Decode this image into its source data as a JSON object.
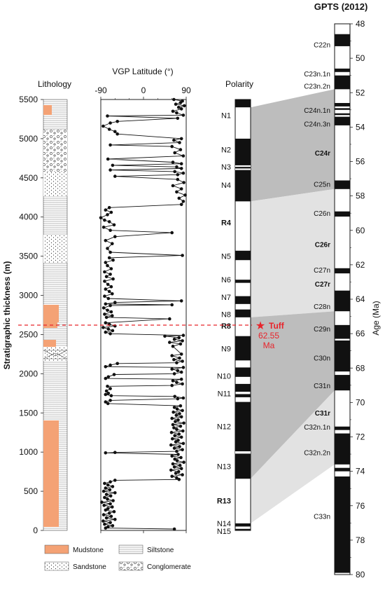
{
  "figure": {
    "lithology_title": "Lithology",
    "vgp_title": "VGP Latitude (°)",
    "polarity_title": "Polarity",
    "gpts_title": "GPTS (2012)",
    "y_label": "Stratigraphic thickness (m)",
    "age_label": "Age (Ma)",
    "tuff_label": "Tuff",
    "tuff_age_value": "62.55",
    "tuff_age_unit": "Ma",
    "tuff_color": "#e8242b",
    "mudstone_color": "#f4a275",
    "legend": [
      {
        "key": "mudstone",
        "label": "Mudstone"
      },
      {
        "key": "siltstone",
        "label": "Siltstone"
      },
      {
        "key": "sandstone",
        "label": "Sandstone"
      },
      {
        "key": "conglomerate",
        "label": "Conglomerate"
      }
    ]
  },
  "chart_data": [
    {
      "type": "line",
      "name": "vgp",
      "xlabel": "VGP Latitude (°)",
      "ylabel": "Stratigraphic thickness (m)",
      "xlim": [
        -90,
        90
      ],
      "ylim": [
        0,
        5500
      ],
      "x_ticks": [
        -90,
        0,
        90
      ],
      "y_ticks": [
        0,
        500,
        1000,
        1500,
        2000,
        2500,
        3000,
        3500,
        4000,
        4500,
        5000,
        5500
      ],
      "points": [
        [
          65,
          18
        ],
        [
          -80,
          30
        ],
        [
          -75,
          45
        ],
        [
          -65,
          60
        ],
        [
          -82,
          80
        ],
        [
          -70,
          100
        ],
        [
          -85,
          120
        ],
        [
          -60,
          140
        ],
        [
          -78,
          160
        ],
        [
          -68,
          180
        ],
        [
          -84,
          200
        ],
        [
          -72,
          220
        ],
        [
          -62,
          240
        ],
        [
          -80,
          260
        ],
        [
          -75,
          280
        ],
        [
          -66,
          300
        ],
        [
          -83,
          320
        ],
        [
          -70,
          340
        ],
        [
          -88,
          360
        ],
        [
          -64,
          380
        ],
        [
          -76,
          400
        ],
        [
          -82,
          420
        ],
        [
          -69,
          440
        ],
        [
          -78,
          460
        ],
        [
          -60,
          480
        ],
        [
          -84,
          500
        ],
        [
          -71,
          520
        ],
        [
          -80,
          540
        ],
        [
          -65,
          560
        ],
        [
          -75,
          580
        ],
        [
          -82,
          600
        ],
        [
          -70,
          620
        ],
        [
          -60,
          640
        ],
        [
          75,
          650
        ],
        [
          70,
          670
        ],
        [
          60,
          690
        ],
        [
          82,
          710
        ],
        [
          68,
          730
        ],
        [
          74,
          750
        ],
        [
          58,
          770
        ],
        [
          80,
          790
        ],
        [
          65,
          810
        ],
        [
          77,
          830
        ],
        [
          62,
          850
        ],
        [
          85,
          870
        ],
        [
          71,
          890
        ],
        [
          66,
          910
        ],
        [
          79,
          930
        ],
        [
          60,
          950
        ],
        [
          73,
          970
        ],
        [
          -80,
          990
        ],
        [
          -60,
          995
        ],
        [
          70,
          1010
        ],
        [
          82,
          1030
        ],
        [
          65,
          1050
        ],
        [
          76,
          1070
        ],
        [
          58,
          1090
        ],
        [
          84,
          1110
        ],
        [
          68,
          1130
        ],
        [
          73,
          1150
        ],
        [
          61,
          1170
        ],
        [
          80,
          1190
        ],
        [
          66,
          1210
        ],
        [
          75,
          1230
        ],
        [
          59,
          1250
        ],
        [
          83,
          1270
        ],
        [
          70,
          1290
        ],
        [
          64,
          1310
        ],
        [
          78,
          1330
        ],
        [
          62,
          1350
        ],
        [
          85,
          1370
        ],
        [
          67,
          1390
        ],
        [
          73,
          1410
        ],
        [
          60,
          1430
        ],
        [
          80,
          1450
        ],
        [
          69,
          1470
        ],
        [
          76,
          1490
        ],
        [
          63,
          1510
        ],
        [
          82,
          1530
        ],
        [
          71,
          1550
        ],
        [
          65,
          1570
        ],
        [
          78,
          1590
        ],
        [
          -75,
          1620
        ],
        [
          -80,
          1640
        ],
        [
          -70,
          1660
        ],
        [
          72,
          1680
        ],
        [
          84,
          1690
        ],
        [
          66,
          1710
        ],
        [
          -68,
          1720
        ],
        [
          -80,
          1735
        ],
        [
          -74,
          1750
        ],
        [
          -78,
          1780
        ],
        [
          -70,
          1810
        ],
        [
          -76,
          1840
        ],
        [
          60,
          1850
        ],
        [
          82,
          1870
        ],
        [
          70,
          1890
        ],
        [
          62,
          1910
        ],
        [
          80,
          1930
        ],
        [
          -80,
          1940
        ],
        [
          -74,
          1960
        ],
        [
          -62,
          1990
        ],
        [
          65,
          2000
        ],
        [
          80,
          2020
        ],
        [
          72,
          2040
        ],
        [
          60,
          2060
        ],
        [
          84,
          2080
        ],
        [
          -80,
          2090
        ],
        [
          -70,
          2110
        ],
        [
          -55,
          2130
        ],
        [
          70,
          2140
        ],
        [
          82,
          2160
        ],
        [
          64,
          2180
        ],
        [
          76,
          2200
        ],
        [
          60,
          2230
        ],
        [
          80,
          2250
        ],
        [
          62,
          2350
        ],
        [
          78,
          2380
        ],
        [
          55,
          2400
        ],
        [
          82,
          2420
        ],
        [
          65,
          2440
        ],
        [
          75,
          2460
        ],
        [
          45,
          2480
        ],
        [
          84,
          2490
        ],
        [
          -70,
          2510
        ],
        [
          -80,
          2530
        ],
        [
          -65,
          2550
        ],
        [
          -74,
          2570
        ],
        [
          -85,
          2590
        ],
        [
          -60,
          2610
        ],
        [
          -72,
          2630
        ],
        [
          -80,
          2650
        ],
        [
          55,
          2700
        ],
        [
          -78,
          2720
        ],
        [
          -66,
          2740
        ],
        [
          -82,
          2760
        ],
        [
          -68,
          2790
        ],
        [
          -76,
          2810
        ],
        [
          -84,
          2840
        ],
        [
          -70,
          2870
        ],
        [
          60,
          2880
        ],
        [
          -80,
          2890
        ],
        [
          -60,
          2910
        ],
        [
          80,
          2930
        ],
        [
          -74,
          2960
        ],
        [
          -82,
          2990
        ],
        [
          -66,
          3020
        ],
        [
          -72,
          3050
        ],
        [
          -80,
          3080
        ],
        [
          -68,
          3110
        ],
        [
          -75,
          3140
        ],
        [
          -82,
          3180
        ],
        [
          -64,
          3210
        ],
        [
          -78,
          3240
        ],
        [
          -70,
          3270
        ],
        [
          -82,
          3300
        ],
        [
          -68,
          3340
        ],
        [
          -76,
          3380
        ],
        [
          -80,
          3420
        ],
        [
          -64,
          3450
        ],
        [
          -72,
          3480
        ],
        [
          82,
          3510
        ],
        [
          -70,
          3550
        ],
        [
          -76,
          3600
        ],
        [
          -66,
          3660
        ],
        [
          -80,
          3700
        ],
        [
          -60,
          3750
        ],
        [
          60,
          3800
        ],
        [
          -70,
          3830
        ],
        [
          -84,
          3870
        ],
        [
          -62,
          3900
        ],
        [
          -72,
          3940
        ],
        [
          -82,
          3960
        ],
        [
          -90,
          3990
        ],
        [
          -76,
          4030
        ],
        [
          -68,
          4060
        ],
        [
          -80,
          4090
        ],
        [
          -72,
          4120
        ],
        [
          80,
          4160
        ],
        [
          84,
          4200
        ],
        [
          75,
          4240
        ],
        [
          88,
          4280
        ],
        [
          70,
          4320
        ],
        [
          80,
          4360
        ],
        [
          62,
          4400
        ],
        [
          85,
          4440
        ],
        [
          72,
          4480
        ],
        [
          -60,
          4520
        ],
        [
          72,
          4540
        ],
        [
          84,
          4560
        ],
        [
          66,
          4580
        ],
        [
          -70,
          4600
        ],
        [
          80,
          4620
        ],
        [
          70,
          4640
        ],
        [
          -65,
          4660
        ],
        [
          80,
          4680
        ],
        [
          62,
          4700
        ],
        [
          -75,
          4740
        ],
        [
          84,
          4780
        ],
        [
          66,
          4820
        ],
        [
          78,
          4860
        ],
        [
          60,
          4900
        ],
        [
          -70,
          4920
        ],
        [
          76,
          4950
        ],
        [
          64,
          4980
        ],
        [
          80,
          5000
        ],
        [
          -55,
          5060
        ],
        [
          -60,
          5090
        ],
        [
          -72,
          5120
        ],
        [
          -85,
          5160
        ],
        [
          -70,
          5200
        ],
        [
          -55,
          5220
        ],
        [
          72,
          5260
        ],
        [
          -76,
          5290
        ],
        [
          84,
          5300
        ],
        [
          70,
          5330
        ],
        [
          62,
          5350
        ],
        [
          80,
          5380
        ],
        [
          74,
          5400
        ],
        [
          86,
          5420
        ],
        [
          68,
          5440
        ],
        [
          78,
          5460
        ],
        [
          82,
          5480
        ],
        [
          64,
          5500
        ]
      ]
    },
    {
      "type": "table",
      "name": "polarity",
      "ylim": [
        0,
        5500
      ],
      "labels": [
        {
          "text": "N1",
          "bold": false,
          "at": 5300
        },
        {
          "text": "N2",
          "bold": false,
          "at": 4860
        },
        {
          "text": "N3",
          "bold": false,
          "at": 4640
        },
        {
          "text": "N4",
          "bold": false,
          "at": 4410
        },
        {
          "text": "R4",
          "bold": true,
          "at": 3930
        },
        {
          "text": "N5",
          "bold": false,
          "at": 3500
        },
        {
          "text": "N6",
          "bold": false,
          "at": 3200
        },
        {
          "text": "N7",
          "bold": false,
          "at": 2980
        },
        {
          "text": "N8",
          "bold": false,
          "at": 2760
        },
        {
          "text": "R8",
          "bold": true,
          "at": 2610
        },
        {
          "text": "N9",
          "bold": false,
          "at": 2320
        },
        {
          "text": "N10",
          "bold": false,
          "at": 1970
        },
        {
          "text": "N11",
          "bold": false,
          "at": 1750
        },
        {
          "text": "N12",
          "bold": false,
          "at": 1330
        },
        {
          "text": "N13",
          "bold": false,
          "at": 820
        },
        {
          "text": "R13",
          "bold": true,
          "at": 380
        },
        {
          "text": "N14",
          "bold": false,
          "at": 90
        },
        {
          "text": "N15",
          "bold": false,
          "at": -10
        }
      ],
      "normal_intervals_m": [
        [
          5400,
          5500
        ],
        [
          4200,
          5000
        ],
        [
          3450,
          3570
        ],
        [
          3160,
          3200
        ],
        [
          2890,
          2990
        ],
        [
          2720,
          2820
        ],
        [
          2170,
          2480
        ],
        [
          1960,
          2080
        ],
        [
          1770,
          1870
        ],
        [
          1700,
          1740
        ],
        [
          660,
          1640
        ],
        [
          50,
          90
        ],
        [
          0,
          20
        ]
      ],
      "reversed_gaps_m": [
        [
          4640,
          4660
        ],
        [
          4600,
          4620
        ],
        [
          980,
          1010
        ]
      ]
    },
    {
      "type": "table",
      "name": "gpts",
      "ylim": [
        48,
        80
      ],
      "age_ticks": [
        48,
        50,
        52,
        54,
        56,
        58,
        60,
        62,
        64,
        66,
        68,
        70,
        72,
        74,
        76,
        78,
        80
      ],
      "labels": [
        {
          "text": "C22n",
          "bold": false,
          "age": 49.2
        },
        {
          "text": "C23n.1n",
          "bold": false,
          "age": 50.9
        },
        {
          "text": "C23n.2n",
          "bold": false,
          "age": 51.6
        },
        {
          "text": "C24n.1n",
          "bold": false,
          "age": 53.0
        },
        {
          "text": "C24n.3n",
          "bold": false,
          "age": 53.8
        },
        {
          "text": "C24r",
          "bold": true,
          "age": 55.5
        },
        {
          "text": "C25n",
          "bold": false,
          "age": 57.3
        },
        {
          "text": "C26n",
          "bold": false,
          "age": 59.0
        },
        {
          "text": "C26r",
          "bold": true,
          "age": 60.8
        },
        {
          "text": "C27n",
          "bold": false,
          "age": 62.3
        },
        {
          "text": "C27r",
          "bold": true,
          "age": 63.1
        },
        {
          "text": "C28n",
          "bold": false,
          "age": 64.4
        },
        {
          "text": "C29n",
          "bold": false,
          "age": 65.7
        },
        {
          "text": "C30n",
          "bold": false,
          "age": 67.4
        },
        {
          "text": "C31n",
          "bold": false,
          "age": 69.0
        },
        {
          "text": "C31r",
          "bold": true,
          "age": 70.6
        },
        {
          "text": "C32n.1n",
          "bold": false,
          "age": 71.4
        },
        {
          "text": "C32n.2n",
          "bold": false,
          "age": 72.9
        },
        {
          "text": "C33n",
          "bold": false,
          "age": 76.6
        }
      ],
      "normal_chrons_ma": [
        [
          48.6,
          49.3
        ],
        [
          50.6,
          50.8
        ],
        [
          51.0,
          51.8
        ],
        [
          52.6,
          52.8
        ],
        [
          52.9,
          53.0
        ],
        [
          53.2,
          53.3
        ],
        [
          53.4,
          53.9
        ],
        [
          57.1,
          57.6
        ],
        [
          58.9,
          59.2
        ],
        [
          62.2,
          62.5
        ],
        [
          63.5,
          64.7
        ],
        [
          65.5,
          66.3
        ],
        [
          66.4,
          68.2
        ],
        [
          68.4,
          69.3
        ],
        [
          71.4,
          71.6
        ],
        [
          71.8,
          73.6
        ],
        [
          73.8,
          74.0
        ],
        [
          74.3,
          79.9
        ]
      ]
    }
  ],
  "correlations": [
    {
      "poly_m": [
        5400,
        4200
      ],
      "poly_ma": [
        51.8,
        57.6
      ],
      "shade": "#bdbdbd"
    },
    {
      "poly_m": [
        4200,
        2720
      ],
      "poly_ma": [
        57.6,
        64.7
      ],
      "shade": "#e2e2e2"
    },
    {
      "poly_m": [
        2720,
        660
      ],
      "poly_ma": [
        64.7,
        69.3
      ],
      "shade": "#bdbdbd"
    },
    {
      "poly_m": [
        660,
        90
      ],
      "poly_ma": [
        69.3,
        73.6
      ],
      "shade": "#e2e2e2"
    }
  ],
  "tuff_m": 2620
}
